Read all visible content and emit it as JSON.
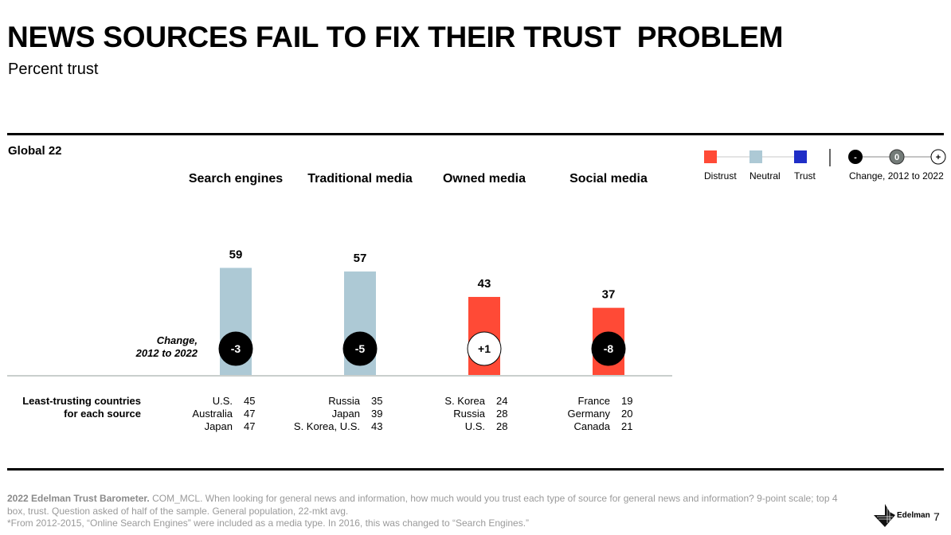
{
  "header": {
    "title": "NEWS SOURCES FAIL TO FIX THEIR TRUST  PROBLEM",
    "subtitle": "Percent trust"
  },
  "segment_label": "Global 22",
  "legend": {
    "items": [
      {
        "label": "Distrust",
        "color": "#ff4a36"
      },
      {
        "label": "Neutral",
        "color": "#adc9d5"
      },
      {
        "label": "Trust",
        "color": "#1f2ec7"
      }
    ],
    "change_markers": [
      "-",
      "0",
      "+"
    ],
    "change_label": "Change, 2012 to 2022"
  },
  "change_axis_label": {
    "line1": "Change,",
    "line2": "2012 to 2022"
  },
  "least_trusting": {
    "label_line1": "Least-trusting countries",
    "label_line2": "for each source",
    "groups": [
      [
        {
          "country": "U.S.",
          "value": "45"
        },
        {
          "country": "Australia",
          "value": "47"
        },
        {
          "country": "Japan",
          "value": "47"
        }
      ],
      [
        {
          "country": "Russia",
          "value": "35"
        },
        {
          "country": "Japan",
          "value": "39"
        },
        {
          "country": "S. Korea, U.S.",
          "value": "43"
        }
      ],
      [
        {
          "country": "S. Korea",
          "value": "24"
        },
        {
          "country": "Russia",
          "value": "28"
        },
        {
          "country": "U.S.",
          "value": "28"
        }
      ],
      [
        {
          "country": "France",
          "value": "19"
        },
        {
          "country": "Germany",
          "value": "20"
        },
        {
          "country": "Canada",
          "value": "21"
        }
      ]
    ]
  },
  "chart_data": {
    "type": "bar",
    "title": "NEWS SOURCES FAIL TO FIX THEIR TRUST  PROBLEM",
    "subtitle": "Percent trust",
    "xlabel": "",
    "ylabel": "Percent trust",
    "categories": [
      "Search engines",
      "Traditional media",
      "Owned media",
      "Social media"
    ],
    "values": [
      59,
      57,
      43,
      37
    ],
    "trust_level": [
      "Neutral",
      "Neutral",
      "Distrust",
      "Distrust"
    ],
    "bar_colors": [
      "#adc9d5",
      "#adc9d5",
      "#ff4a36",
      "#ff4a36"
    ],
    "change_2012_to_2022": [
      "-3",
      "-5",
      "+1",
      "-8"
    ],
    "change_direction": [
      "negative",
      "negative",
      "positive",
      "negative"
    ],
    "ylim": [
      0,
      100
    ],
    "grid": false,
    "legend_position": "top-right"
  },
  "footer": {
    "source_bold": "2022 Edelman Trust Barometer.",
    "source_text": " COM_MCL. When looking for general news and information, how much would you trust each type of source for general news and information? 9-point scale; top 4 box, trust. Question asked of half of the sample. General population, 22-mkt avg.",
    "note": "*From 2012-2015, “Online Search Engines” were included as a media type. In 2016, this was changed to “Search Engines.”",
    "brand": "Edelman",
    "page_number": "7"
  }
}
